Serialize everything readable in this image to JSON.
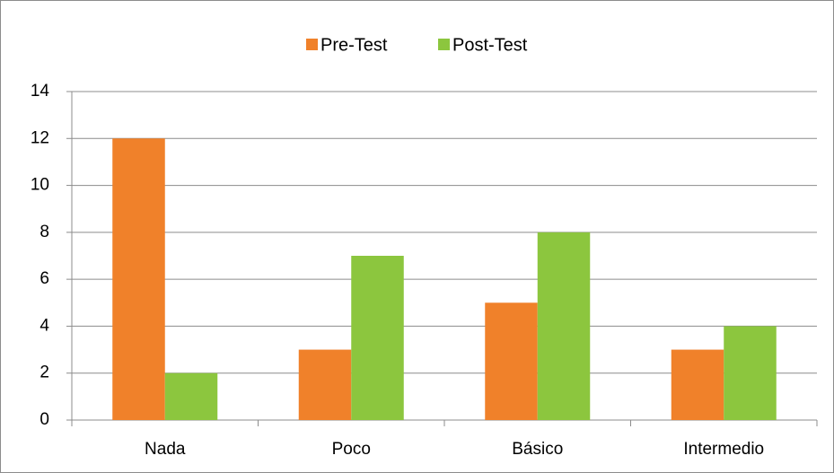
{
  "chart_data": {
    "type": "bar",
    "categories": [
      "Nada",
      "Poco",
      "Básico",
      "Intermedio"
    ],
    "series": [
      {
        "name": "Pre-Test",
        "color": "#f0812a",
        "values": [
          12,
          3,
          5,
          3
        ]
      },
      {
        "name": "Post-Test",
        "color": "#8cc63e",
        "values": [
          2,
          7,
          8,
          4
        ]
      }
    ],
    "ylim": [
      0,
      14
    ],
    "yticks": [
      0,
      2,
      4,
      6,
      8,
      10,
      12,
      14
    ],
    "grid": true,
    "legend": "top"
  }
}
